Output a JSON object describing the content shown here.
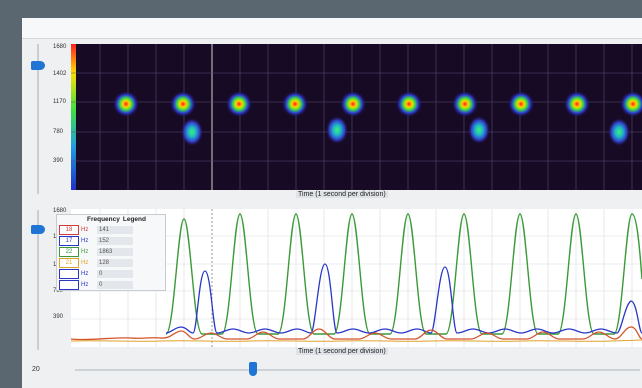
{
  "spectrogram": {
    "y_ticks": [
      "1680",
      "1402",
      "1170",
      "780",
      "390"
    ],
    "caption": "Time (1 second per division)"
  },
  "waveform": {
    "y_ticks": [
      "1680",
      "1560",
      "1170",
      "780",
      "390"
    ],
    "caption": "Time (1 second per division)",
    "series_colors": [
      "#3a9a3a",
      "#2a36c8",
      "#d4542a",
      "#e0a12a"
    ]
  },
  "legend": {
    "title_freq": "Frequency",
    "title_legend": "Legend",
    "rows": [
      {
        "freq": "18",
        "unit": "Hz",
        "count": "141",
        "color": "#d23b3b"
      },
      {
        "freq": "17",
        "unit": "Hz",
        "count": "152",
        "color": "#2a36c8"
      },
      {
        "freq": "22",
        "unit": "Hz",
        "count": "1863",
        "color": "#3a9a3a"
      },
      {
        "freq": "21",
        "unit": "Hz",
        "count": "128",
        "color": "#e0a12a"
      },
      {
        "freq": "",
        "unit": "Hz",
        "count": "0",
        "color": "#2a36c8"
      },
      {
        "freq": "",
        "unit": "Hz",
        "count": "0",
        "color": "#2a36c8"
      }
    ]
  },
  "bottom": {
    "zoom_value": "20"
  }
}
